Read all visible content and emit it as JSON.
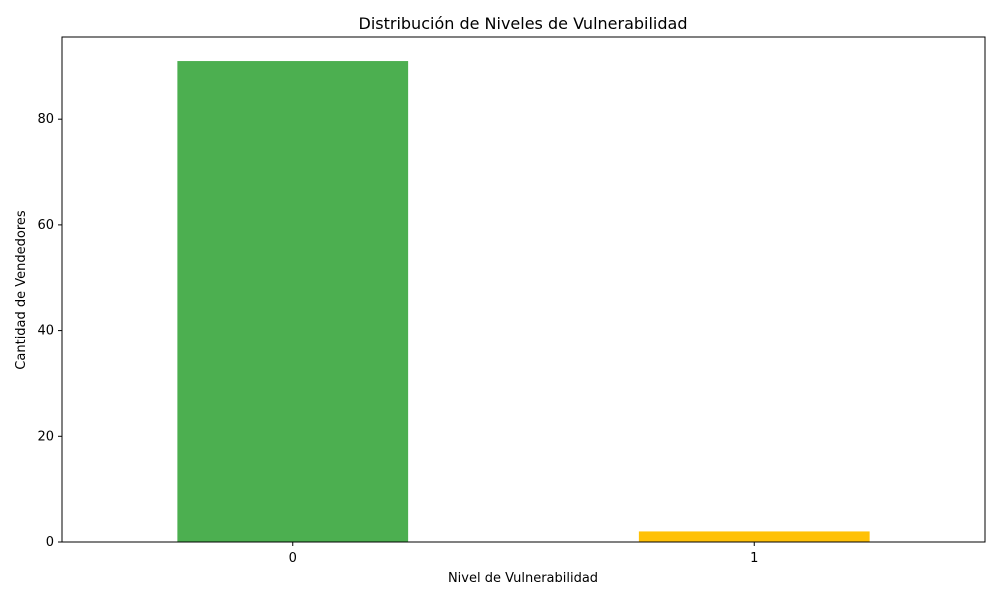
{
  "chart_data": {
    "type": "bar",
    "title": "Distribución de Niveles de Vulnerabilidad",
    "xlabel": "Nivel de Vulnerabilidad",
    "ylabel": "Cantidad de Vendedores",
    "categories": [
      "0",
      "1"
    ],
    "values": [
      91,
      2
    ],
    "colors": [
      "#4caf50",
      "#ffc107"
    ],
    "ylim": [
      0,
      95.55
    ],
    "yticks": [
      0,
      20,
      40,
      60,
      80
    ],
    "ytick_labels": [
      "0",
      "20",
      "40",
      "60",
      "80"
    ],
    "grid": false,
    "legend": "none"
  }
}
